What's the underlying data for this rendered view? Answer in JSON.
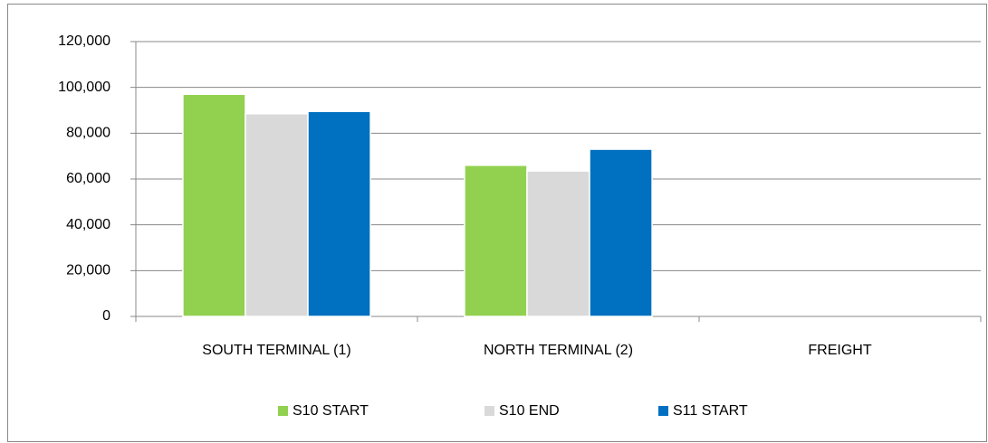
{
  "chart_data": {
    "type": "bar",
    "categories": [
      "SOUTH TERMINAL (1)",
      "NORTH TERMINAL (2)",
      "FREIGHT"
    ],
    "series": [
      {
        "name": "S10 START",
        "color": "#92d050",
        "values": [
          97000,
          66000,
          0
        ]
      },
      {
        "name": "S10 END",
        "color": "#d9d9d9",
        "values": [
          88500,
          63500,
          0
        ]
      },
      {
        "name": "S11 START",
        "color": "#0070c0",
        "values": [
          89500,
          73000,
          0
        ]
      }
    ],
    "ylim": [
      0,
      120000
    ],
    "yticks": [
      0,
      {
        "value": 20000,
        "label": "20,000"
      },
      {
        "value": 40000,
        "label": "40,000"
      },
      {
        "value": 60000,
        "label": "60,000"
      },
      {
        "value": 80000,
        "label": "80,000"
      },
      {
        "value": 100000,
        "label": "100,000"
      },
      {
        "value": 120000,
        "label": "120,000"
      }
    ],
    "grid": true,
    "legend": "bottom"
  }
}
